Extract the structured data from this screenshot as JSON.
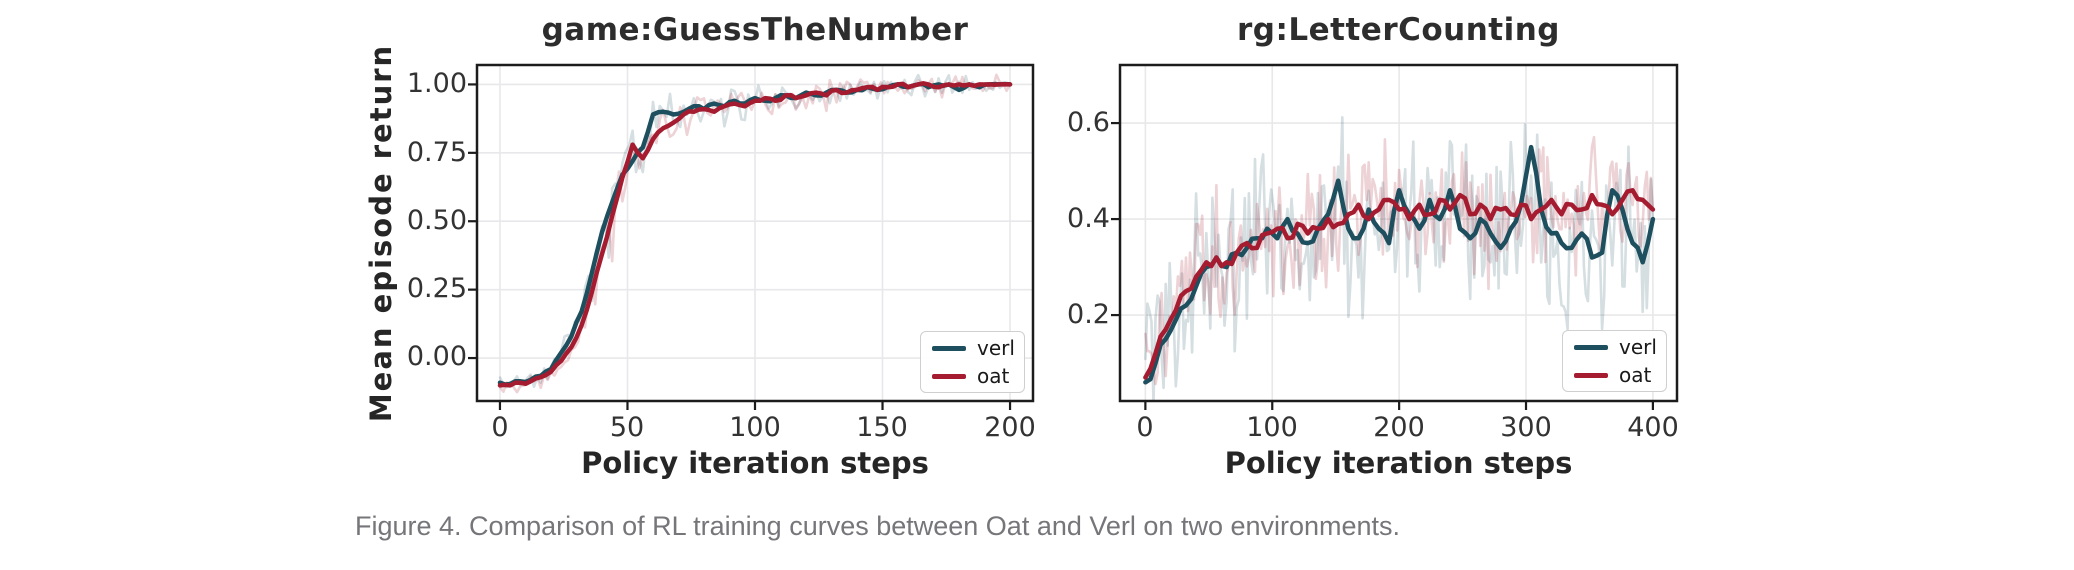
{
  "page": {
    "background": "#ffffff",
    "caption": "Figure 4. Comparison of RL training curves between Oat and Verl on two environments."
  },
  "colors": {
    "verl": "#1e4f5f",
    "oat": "#a51c30",
    "grid": "#e8e8ea",
    "axis": "#1c1c1c",
    "tick_label": "#333333",
    "title": "#2d2d2d",
    "caption": "#75757a"
  },
  "chart_data": [
    {
      "type": "line",
      "title": "game:GuessTheNumber",
      "xlabel": "Policy iteration steps",
      "ylabel": "Mean episode return",
      "xlim": [
        -9,
        209
      ],
      "ylim": [
        -0.157,
        1.071
      ],
      "grid": true,
      "legend_position": "lower right",
      "xticks": [
        0,
        50,
        100,
        150,
        200
      ],
      "xtick_labels": [
        "0",
        "50",
        "100",
        "150",
        "200"
      ],
      "yticks": [
        0.0,
        0.25,
        0.5,
        0.75,
        1.0
      ],
      "ytick_labels": [
        "0.00",
        "0.25",
        "0.50",
        "0.75",
        "1.00"
      ],
      "raw_shape": "transition",
      "smooth_jitter": 0.007,
      "x": [
        0,
        4,
        8,
        12,
        16,
        20,
        24,
        28,
        32,
        36,
        40,
        44,
        48,
        52,
        56,
        60,
        64,
        68,
        72,
        76,
        80,
        84,
        88,
        92,
        96,
        100,
        104,
        108,
        112,
        116,
        120,
        124,
        128,
        132,
        136,
        140,
        144,
        148,
        152,
        156,
        160,
        164,
        168,
        172,
        176,
        180,
        184,
        188,
        192,
        196,
        200
      ],
      "series": [
        {
          "name": "verl",
          "color": "#1e4f5f",
          "raw_color": "rgba(30,79,95,0.19)",
          "raw_amp": 0.065,
          "values": [
            -0.09,
            -0.095,
            -0.085,
            -0.08,
            -0.065,
            -0.04,
            0.02,
            0.08,
            0.17,
            0.31,
            0.46,
            0.57,
            0.67,
            0.72,
            0.77,
            0.89,
            0.9,
            0.89,
            0.9,
            0.92,
            0.91,
            0.93,
            0.92,
            0.94,
            0.93,
            0.95,
            0.94,
            0.95,
            0.96,
            0.95,
            0.97,
            0.96,
            0.97,
            0.98,
            0.97,
            0.98,
            0.99,
            0.98,
            0.99,
            1.0,
            0.99,
            1.0,
            0.99,
            1.0,
            1.0,
            0.98,
            1.0,
            0.99,
            1.0,
            1.0,
            1.0
          ]
        },
        {
          "name": "oat",
          "color": "#a51c30",
          "raw_color": "rgba(165,28,48,0.20)",
          "raw_amp": 0.065,
          "values": [
            -0.1,
            -0.1,
            -0.09,
            -0.085,
            -0.07,
            -0.05,
            -0.01,
            0.04,
            0.12,
            0.24,
            0.38,
            0.52,
            0.66,
            0.78,
            0.73,
            0.8,
            0.84,
            0.86,
            0.89,
            0.9,
            0.91,
            0.9,
            0.92,
            0.93,
            0.92,
            0.94,
            0.95,
            0.94,
            0.96,
            0.95,
            0.96,
            0.97,
            0.96,
            0.98,
            0.97,
            0.98,
            0.99,
            0.98,
            0.99,
            1.0,
            0.99,
            1.0,
            1.0,
            0.99,
            1.0,
            1.0,
            1.0,
            1.0,
            1.0,
            1.0,
            1.0
          ]
        }
      ]
    },
    {
      "type": "line",
      "title": "rg:LetterCounting",
      "xlabel": "Policy iteration steps",
      "ylabel": "",
      "xlim": [
        -20,
        419
      ],
      "ylim": [
        0.021,
        0.721
      ],
      "grid": true,
      "legend_position": "lower right",
      "xticks": [
        0,
        100,
        200,
        300,
        400
      ],
      "xtick_labels": [
        "0",
        "100",
        "200",
        "300",
        "400"
      ],
      "yticks": [
        0.2,
        0.4,
        0.6
      ],
      "ytick_labels": [
        "0.2",
        "0.4",
        "0.6"
      ],
      "raw_shape": "uniform",
      "smooth_jitter": 0.014,
      "x": [
        0,
        8,
        16,
        24,
        32,
        40,
        48,
        56,
        64,
        72,
        80,
        88,
        96,
        104,
        112,
        120,
        128,
        136,
        144,
        152,
        160,
        168,
        176,
        184,
        192,
        200,
        208,
        216,
        224,
        232,
        240,
        248,
        256,
        264,
        272,
        280,
        288,
        296,
        304,
        312,
        320,
        328,
        336,
        344,
        352,
        360,
        368,
        376,
        384,
        392,
        400
      ],
      "series": [
        {
          "name": "verl",
          "color": "#1e4f5f",
          "raw_color": "rgba(30,79,95,0.19)",
          "raw_amp": 0.1,
          "values": [
            0.06,
            0.1,
            0.15,
            0.19,
            0.22,
            0.26,
            0.3,
            0.32,
            0.3,
            0.33,
            0.34,
            0.36,
            0.38,
            0.36,
            0.4,
            0.37,
            0.35,
            0.38,
            0.41,
            0.48,
            0.38,
            0.36,
            0.42,
            0.38,
            0.35,
            0.46,
            0.41,
            0.38,
            0.44,
            0.4,
            0.46,
            0.38,
            0.36,
            0.4,
            0.37,
            0.34,
            0.38,
            0.43,
            0.55,
            0.42,
            0.37,
            0.35,
            0.34,
            0.37,
            0.32,
            0.33,
            0.46,
            0.42,
            0.35,
            0.31,
            0.4
          ]
        },
        {
          "name": "oat",
          "color": "#a51c30",
          "raw_color": "rgba(165,28,48,0.20)",
          "raw_amp": 0.075,
          "values": [
            0.07,
            0.12,
            0.17,
            0.21,
            0.25,
            0.28,
            0.31,
            0.32,
            0.31,
            0.33,
            0.35,
            0.34,
            0.37,
            0.38,
            0.36,
            0.39,
            0.37,
            0.38,
            0.4,
            0.39,
            0.41,
            0.43,
            0.4,
            0.42,
            0.44,
            0.42,
            0.4,
            0.43,
            0.41,
            0.44,
            0.42,
            0.45,
            0.41,
            0.43,
            0.4,
            0.42,
            0.41,
            0.43,
            0.4,
            0.42,
            0.44,
            0.41,
            0.43,
            0.42,
            0.45,
            0.43,
            0.41,
            0.44,
            0.46,
            0.44,
            0.42
          ]
        }
      ]
    }
  ]
}
